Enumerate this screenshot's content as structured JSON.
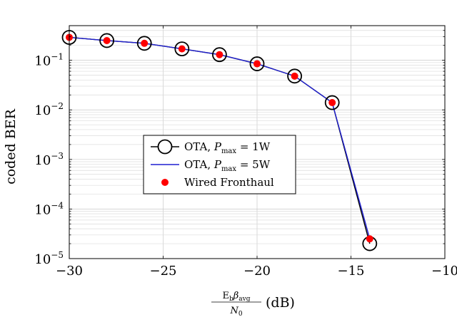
{
  "chart_data": {
    "type": "line",
    "title": "",
    "xlabel": {
      "numerator_main": "E",
      "numerator_sub1": "b",
      "numerator_beta": "β",
      "numerator_sub2": "avg",
      "denominator_main": "N",
      "denominator_sub": "0",
      "unit": "(dB)"
    },
    "ylabel": "coded BER",
    "x_scale": "linear",
    "y_scale": "log",
    "xlim": [
      -30,
      -10
    ],
    "ylim": [
      1e-05,
      0.5
    ],
    "x_ticks": [
      -30,
      -25,
      -20,
      -15,
      -10
    ],
    "x_tick_labels": [
      "−30",
      "−25",
      "−20",
      "−15",
      "−10"
    ],
    "y_ticks": [
      {
        "value": 1e-05,
        "base": "10",
        "exp": "−5"
      },
      {
        "value": 0.0001,
        "base": "10",
        "exp": "−4"
      },
      {
        "value": 0.001,
        "base": "10",
        "exp": "−3"
      },
      {
        "value": 0.01,
        "base": "10",
        "exp": "−2"
      },
      {
        "value": 0.1,
        "base": "10",
        "exp": "−1"
      }
    ],
    "grid": true,
    "legend_position": "center-left",
    "x": [
      -30,
      -28,
      -26,
      -24,
      -22,
      -20,
      -18,
      -16,
      -14
    ],
    "series": [
      {
        "name_prefix": "OTA, ",
        "name_var": "P",
        "name_sub": "max",
        "name_suffix": " = 1W",
        "color": "#000000",
        "marker": "open-circle",
        "values": [
          0.29,
          0.25,
          0.22,
          0.17,
          0.13,
          0.085,
          0.048,
          0.014,
          2e-05
        ]
      },
      {
        "name_prefix": "OTA, ",
        "name_var": "P",
        "name_sub": "max",
        "name_suffix": " = 5W",
        "color": "#1f1fd0",
        "marker": "none",
        "values": [
          0.29,
          0.25,
          0.22,
          0.17,
          0.13,
          0.085,
          0.048,
          0.014,
          2.5e-05
        ]
      },
      {
        "name": "Wired Fronthaul",
        "color": "#ff0000",
        "marker": "filled-dot",
        "values": [
          0.29,
          0.25,
          0.22,
          0.17,
          0.13,
          0.085,
          0.048,
          0.014,
          2.5e-05
        ]
      }
    ]
  }
}
